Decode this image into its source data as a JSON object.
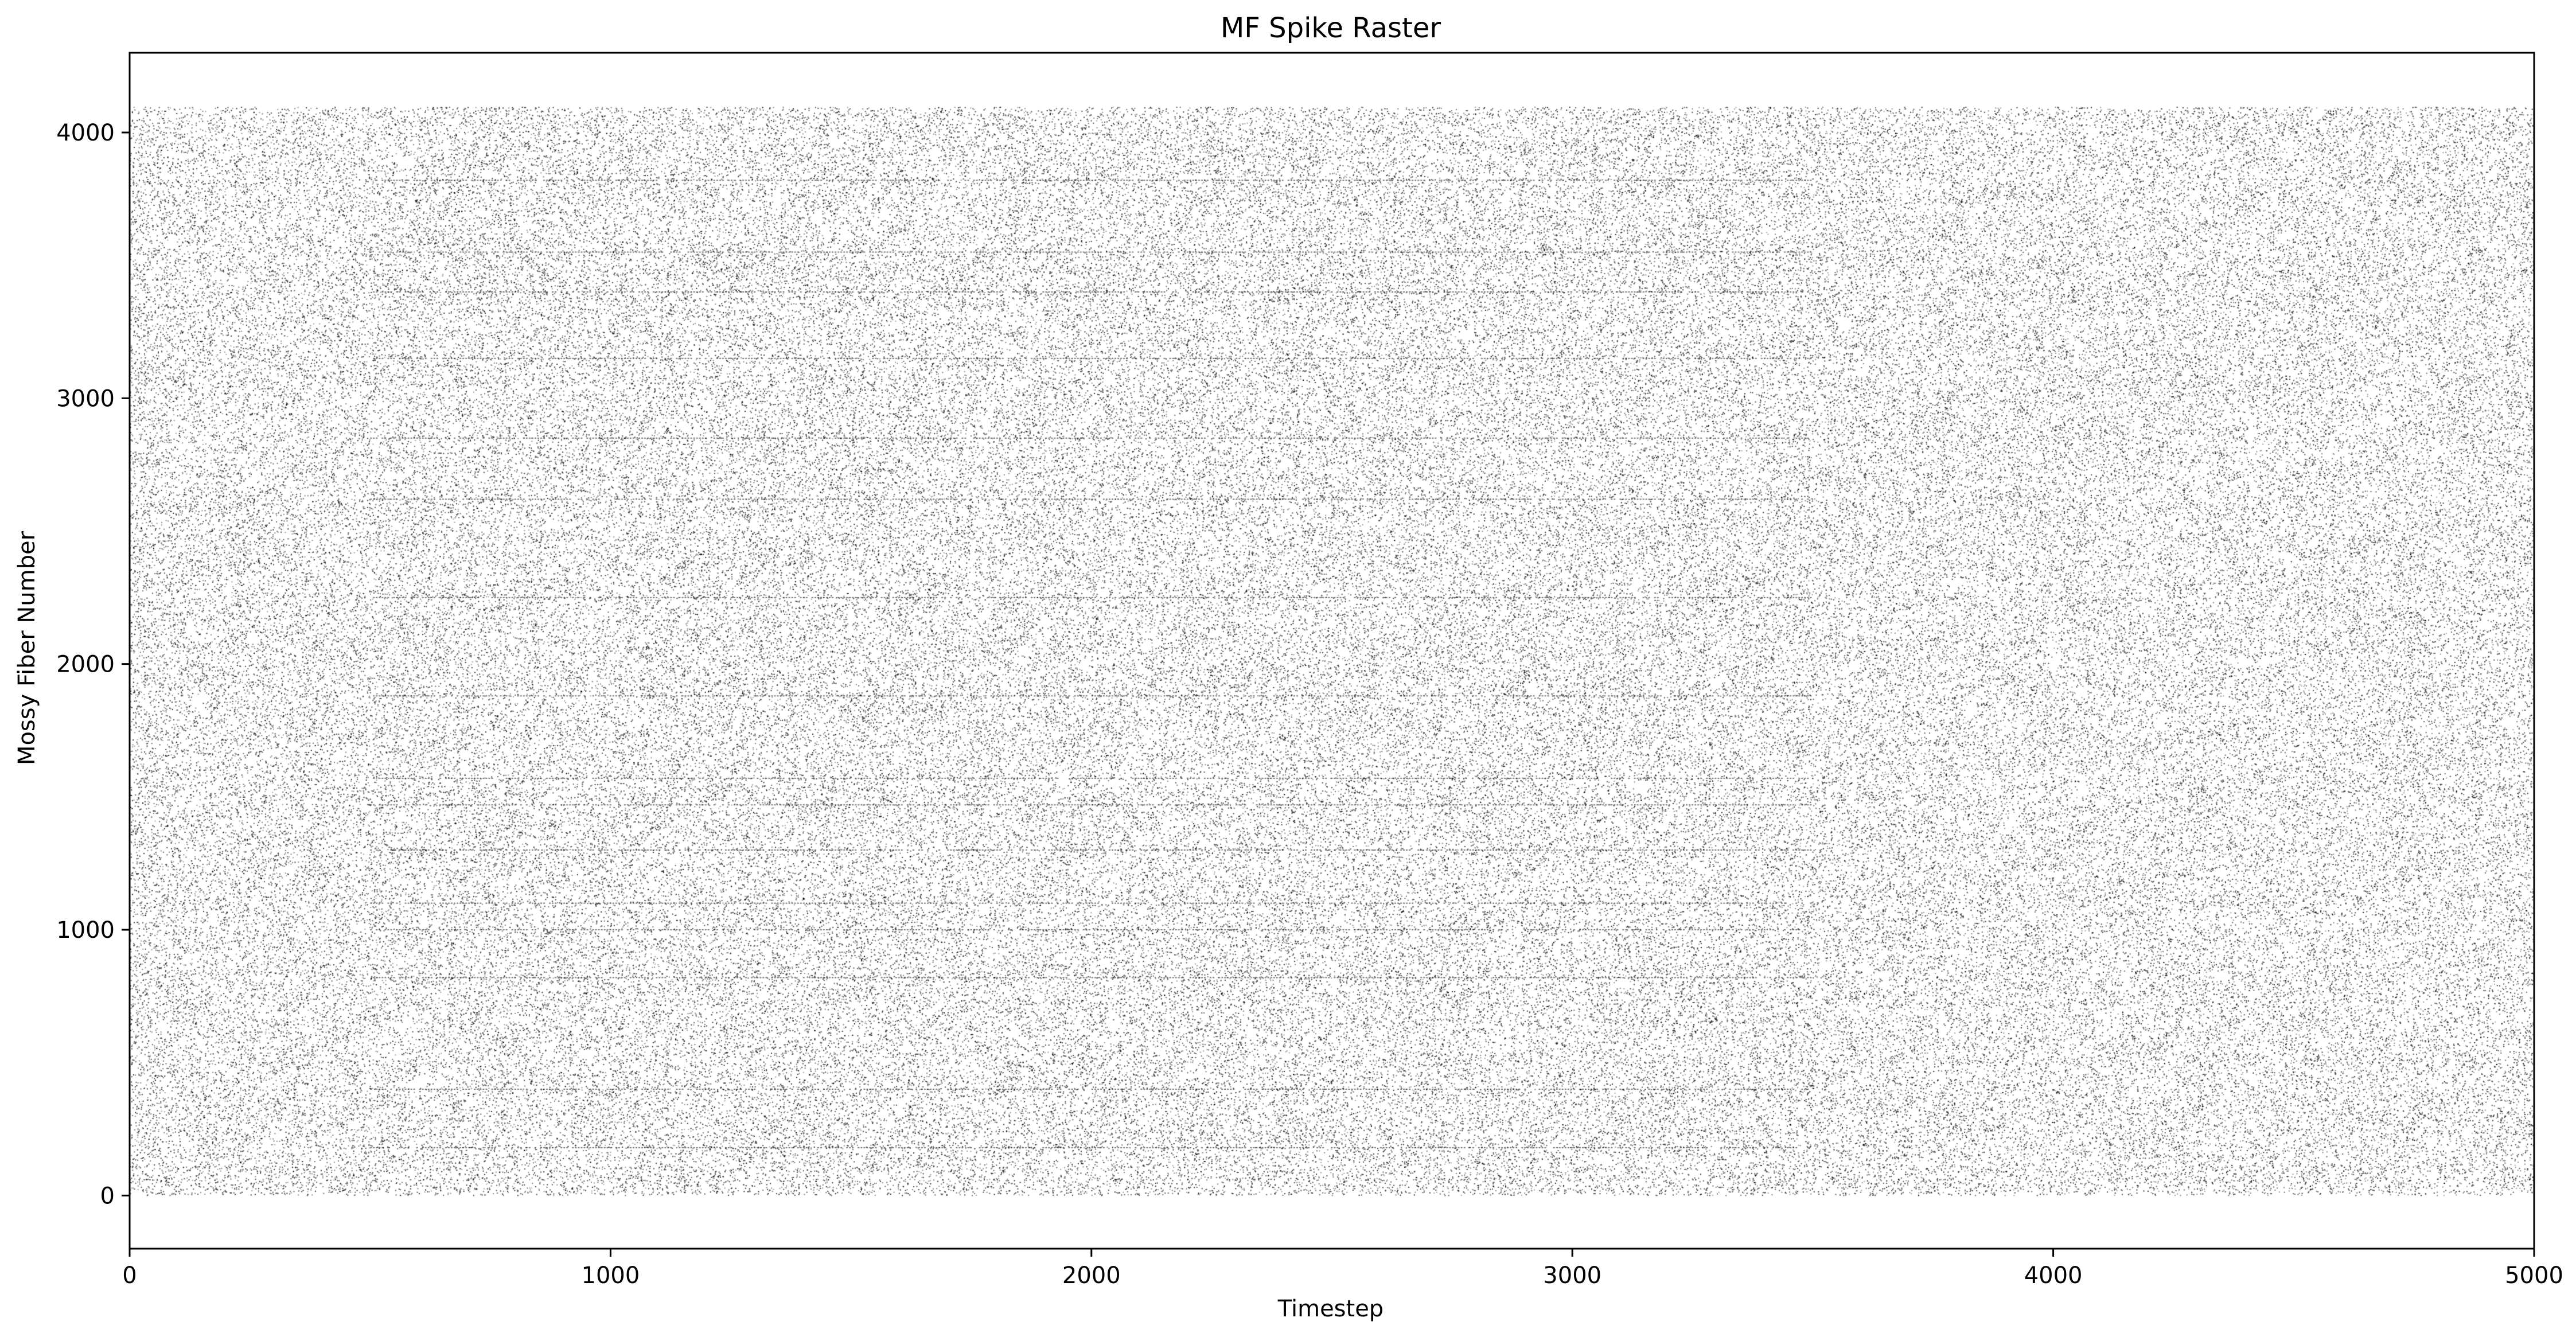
{
  "chart_data": {
    "type": "scatter",
    "title": "MF Spike Raster",
    "xlabel": "Timestep",
    "ylabel": "Mossy Fiber Number",
    "xlim": [
      0,
      5000
    ],
    "ylim": [
      -200,
      4300
    ],
    "x_ticks": [
      0,
      1000,
      2000,
      3000,
      4000,
      5000
    ],
    "y_ticks": [
      0,
      1000,
      2000,
      3000,
      4000
    ],
    "x_tick_labels": [
      "0",
      "1000",
      "2000",
      "3000",
      "4000",
      "5000"
    ],
    "y_tick_labels": [
      "0",
      "1000",
      "2000",
      "3000",
      "4000"
    ],
    "grid": false,
    "marker_color": "#000000",
    "raster": {
      "neuron_range": [
        0,
        4095
      ],
      "timestep_range": [
        0,
        5000
      ],
      "estimated_spike_probability_per_timestep": 0.012,
      "elevated_activity_neurons": [
        180,
        400,
        820,
        1000,
        1100,
        1300,
        1470,
        1570,
        1880,
        2250,
        2620,
        2850,
        3150,
        3400,
        3550,
        3820
      ],
      "elevated_activity_timestep_range": [
        500,
        3500
      ]
    }
  }
}
